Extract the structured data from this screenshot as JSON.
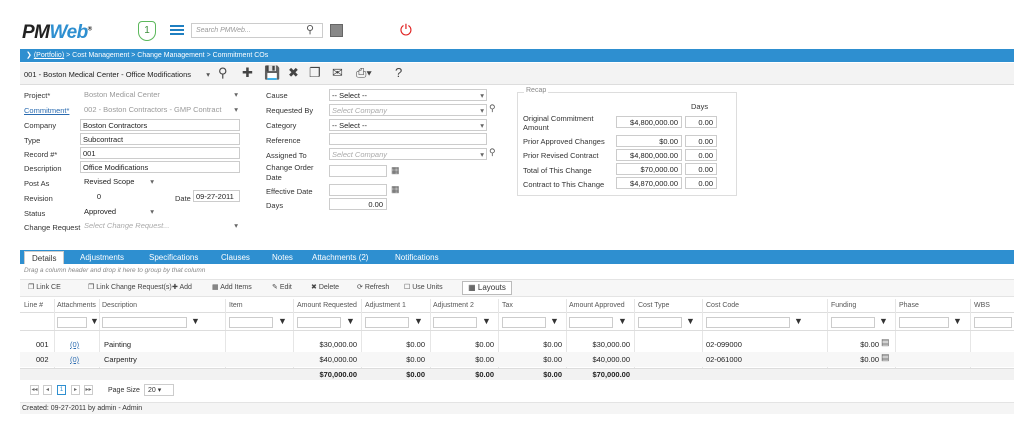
{
  "app": {
    "logo": "PM",
    "logo_accent": "Web",
    "logo_mark": "®",
    "notifications": "1",
    "search_placeholder": "Search PMWeb...",
    "accent_color": "#2e8fd0"
  },
  "breadcrumb": {
    "portfolio": "(Portfolio)",
    "path": " > Cost Management > Change Management > Commitment COs"
  },
  "toolbar": {
    "record_selector": "001 - Boston Medical Center - Office Modifications",
    "icons": [
      "search-icon",
      "add-icon",
      "save-icon",
      "delete-icon",
      "copy-icon",
      "email-icon",
      "print-icon",
      "help-icon"
    ],
    "help": "?"
  },
  "form": {
    "project_label": "Project*",
    "project_value": "Boston Medical Center",
    "commitment_label": "Commitment*",
    "commitment_value": "002 - Boston Contractors - GMP Contract",
    "company_label": "Company",
    "company_value": "Boston Contractors",
    "type_label": "Type",
    "type_value": "Subcontract",
    "record_label": "Record #*",
    "record_value": "001",
    "description_label": "Description",
    "description_value": "Office Modifications",
    "post_as_label": "Post As",
    "post_as_value": "Revised Scope",
    "revision_label": "Revision",
    "revision_value": "0",
    "date_label": "Date",
    "date_value": "09-27-2011",
    "status_label": "Status",
    "status_value": "Approved",
    "change_request_label": "Change Request",
    "change_request_placeholder": "Select Change Request...",
    "cause_label": "Cause",
    "cause_value": "-- Select --",
    "requested_by_label": "Requested By",
    "requested_by_placeholder": "Select Company",
    "category_label": "Category",
    "category_value": "-- Select --",
    "reference_label": "Reference",
    "reference_value": "",
    "assigned_to_label": "Assigned To",
    "assigned_to_placeholder": "Select Company",
    "change_order_date_label_1": "Change Order",
    "change_order_date_label_2": "Date",
    "effective_date_label": "Effective Date",
    "days_label": "Days",
    "days_value": "0.00"
  },
  "recap": {
    "title": "Recap",
    "days_header": "Days",
    "rows": [
      {
        "label": "Original Commitment Amount",
        "amount": "$4,800,000.00",
        "days": "0.00"
      },
      {
        "label": "Prior Approved Changes",
        "amount": "$0.00",
        "days": "0.00"
      },
      {
        "label": "Prior Revised Contract",
        "amount": "$4,800,000.00",
        "days": "0.00"
      },
      {
        "label": "Total of This Change",
        "amount": "$70,000.00",
        "days": "0.00"
      },
      {
        "label": "Contract to This Change",
        "amount": "$4,870,000.00",
        "days": "0.00"
      }
    ]
  },
  "tabs": [
    "Details",
    "Adjustments",
    "Specifications",
    "Clauses",
    "Notes",
    "Attachments (2)",
    "Notifications"
  ],
  "grid": {
    "group_hint": "Drag a column header and drop it here to group by that column",
    "toolbar": [
      "Link CE",
      "Link Change Request(s)",
      "Add",
      "Add Items",
      "Edit",
      "Delete",
      "Refresh",
      "Use Units",
      "Layouts"
    ],
    "columns": [
      "Line #",
      "Attachments",
      "Description",
      "Item",
      "Amount Requested",
      "Adjustment 1",
      "Adjustment 2",
      "Tax",
      "Amount Approved",
      "Cost Type",
      "Cost Code",
      "Funding",
      "Phase",
      "WBS"
    ],
    "rows": [
      {
        "line": "001",
        "attachments": "(0)",
        "description": "Painting",
        "item": "",
        "amount_requested": "$30,000.00",
        "adj1": "$0.00",
        "adj2": "$0.00",
        "tax": "$0.00",
        "amount_approved": "$30,000.00",
        "cost_type": "",
        "cost_code": "02-099000",
        "funding": "$0.00"
      },
      {
        "line": "002",
        "attachments": "(0)",
        "description": "Carpentry",
        "item": "",
        "amount_requested": "$40,000.00",
        "adj1": "$0.00",
        "adj2": "$0.00",
        "tax": "$0.00",
        "amount_approved": "$40,000.00",
        "cost_type": "",
        "cost_code": "02-061000",
        "funding": "$0.00"
      }
    ],
    "totals": {
      "amount_requested": "$70,000.00",
      "adj1": "$0.00",
      "adj2": "$0.00",
      "tax": "$0.00",
      "amount_approved": "$70,000.00"
    }
  },
  "pager": {
    "first": "◂◂",
    "prev": "◂",
    "current": "1",
    "next": "▸",
    "last": "▸▸",
    "page_size_label": "Page Size",
    "page_size_value": "20"
  },
  "status_bar": "Created:  09-27-2011 by admin - Admin"
}
